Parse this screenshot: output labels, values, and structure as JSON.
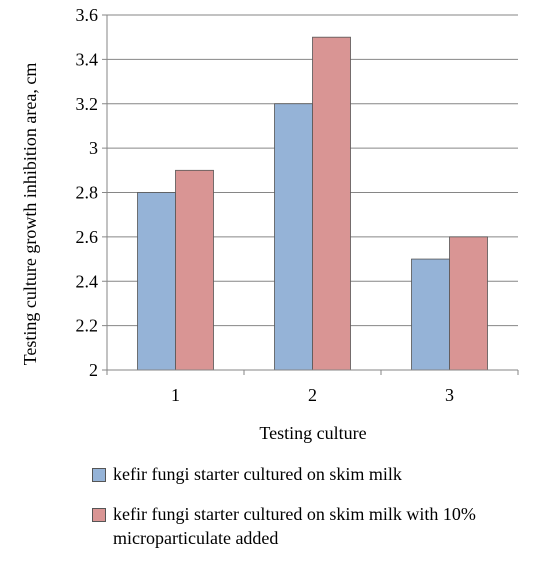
{
  "chart_data": {
    "type": "bar",
    "categories": [
      "1",
      "2",
      "3"
    ],
    "series": [
      {
        "name": "kefir fungi starter cultured on skim milk",
        "values": [
          2.8,
          3.2,
          2.5
        ],
        "color": "#95b3d7"
      },
      {
        "name": "kefir fungi starter cultured on skim milk with 10% microparticulate added",
        "values": [
          2.9,
          3.5,
          2.6
        ],
        "color": "#d99594"
      }
    ],
    "title": "",
    "xlabel": "Testing culture",
    "ylabel": "Testing culture growth inhibition area, cm",
    "ylim": [
      2,
      3.6
    ],
    "yticks": [
      "2",
      "2.2",
      "2.4",
      "2.6",
      "2.8",
      "3",
      "3.2",
      "3.4",
      "3.6"
    ],
    "grid": true,
    "legend_position": "bottom"
  }
}
